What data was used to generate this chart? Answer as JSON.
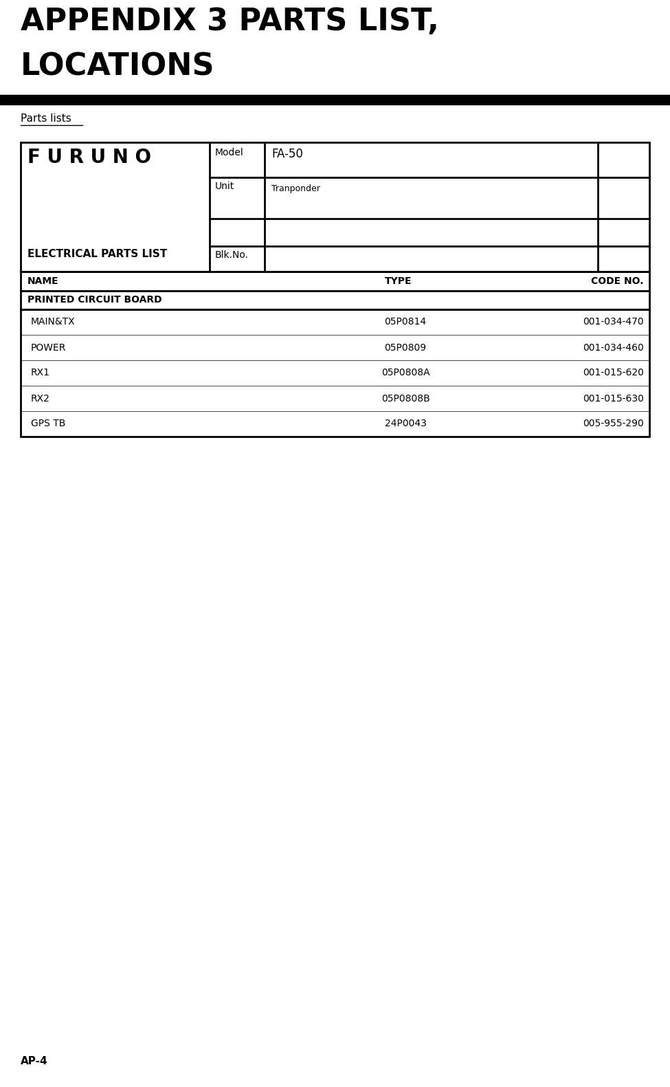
{
  "title_line1": "APPENDIX 3 PARTS LIST,",
  "title_line2": "LOCATIONS",
  "subtitle": "Parts lists",
  "furuno_label": "F U R U N O",
  "parts_list_label": "ELECTRICAL PARTS LIST",
  "model_label": "Model",
  "model_value": "FA-50",
  "unit_label": "Unit",
  "unit_value": "Tranponder",
  "blkno_label": "Blk.No.",
  "col_headers": [
    "NAME",
    "TYPE",
    "CODE NO."
  ],
  "section_header": "PRINTED CIRCUIT BOARD",
  "rows": [
    [
      "MAIN&TX",
      "05P0814",
      "001-034-470"
    ],
    [
      "POWER",
      "05P0809",
      "001-034-460"
    ],
    [
      "RX1",
      "05P0808A",
      "001-015-620"
    ],
    [
      "RX2",
      "05P0808B",
      "001-015-630"
    ],
    [
      "GPS TB",
      "24P0043",
      "005-955-290"
    ]
  ],
  "page_label": "AP-4",
  "bg_color": "#ffffff",
  "text_color": "#000000",
  "bar_color": "#000000",
  "title_fontsize": 32,
  "furuno_fontsize": 20,
  "elec_fontsize": 11,
  "header_fontsize": 10,
  "data_fontsize": 10,
  "page_fontsize": 11,
  "subtitle_fontsize": 11
}
